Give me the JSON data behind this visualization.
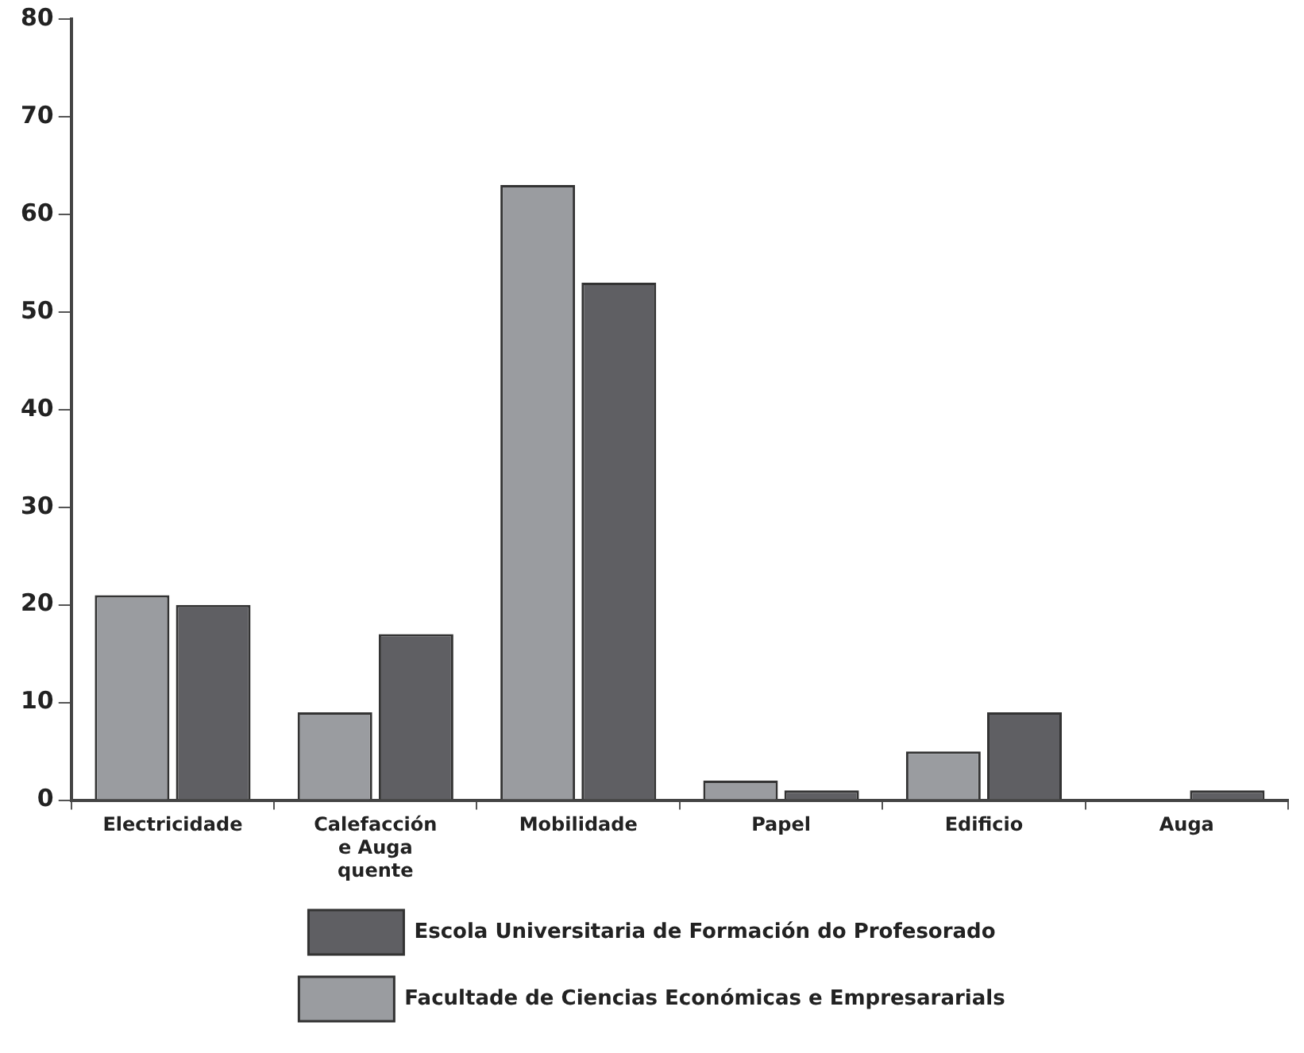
{
  "chart_data": {
    "type": "bar",
    "categories": [
      "Electricidade",
      "Calefacción e Auga quente",
      "Mobilidade",
      "Papel",
      "Edificio",
      "Auga"
    ],
    "series": [
      {
        "name": "Facultade de Ciencias Económicas e Empresararials",
        "color": "#9a9ca0",
        "values": [
          21,
          9,
          63,
          2,
          5,
          0
        ]
      },
      {
        "name": "Escola Universitaria de Formación do Profesorado",
        "color": "#5f5f63",
        "values": [
          20,
          17,
          53,
          1,
          9,
          1
        ]
      }
    ],
    "ylim": [
      0,
      80
    ],
    "yticks": [
      0,
      10,
      20,
      30,
      40,
      50,
      60,
      70,
      80
    ],
    "grid": false,
    "legend": "bottom"
  }
}
